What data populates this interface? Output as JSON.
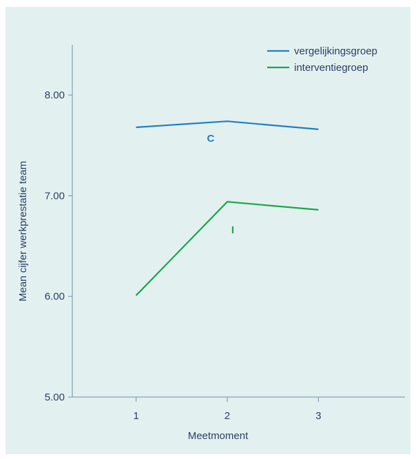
{
  "chart_data": {
    "type": "line",
    "x": [
      1,
      2,
      3
    ],
    "xlabel": "Meetmoment",
    "ylabel": "Mean cijfer werkprestatie team",
    "x_ticks": [
      "1",
      "2",
      "3"
    ],
    "y_ticks": [
      "5.00",
      "6.00",
      "7.00",
      "8.00"
    ],
    "ylim": [
      5.0,
      8.5
    ],
    "grid": false,
    "legend_position": "top-right",
    "series": [
      {
        "name": "vergelijkingsgroep",
        "color": "#1f7fbe",
        "values": [
          7.68,
          7.74,
          7.66
        ],
        "marker_label": "C"
      },
      {
        "name": "interventiegroep",
        "color": "#1aa64a",
        "values": [
          6.01,
          6.94,
          6.86
        ],
        "marker_label": "I"
      }
    ]
  }
}
